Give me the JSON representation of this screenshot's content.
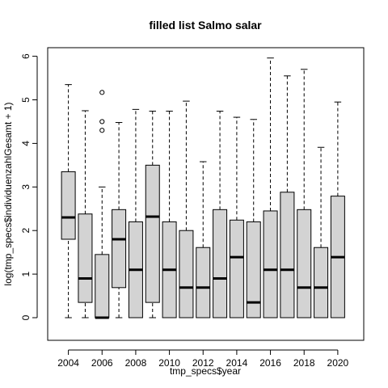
{
  "chart_data": {
    "type": "boxplot",
    "title": "filled list Salmo salar",
    "xlabel": "tmp_specs$year",
    "ylabel": "log(tmp_specs$individuenzahlGesamt + 1)",
    "ylim": [
      0,
      6.1
    ],
    "yticks": [
      0,
      1,
      2,
      3,
      4,
      5,
      6
    ],
    "xtick_labels": [
      "2004",
      "2006",
      "2008",
      "2010",
      "2012",
      "2014",
      "2016",
      "2018",
      "2020"
    ],
    "box_fill": "#d3d3d3",
    "grid": false,
    "boxes": [
      {
        "year": "2004",
        "whisker_low": 0,
        "q1": 1.8,
        "median": 2.3,
        "q3": 3.35,
        "whisker_high": 5.35,
        "outliers": []
      },
      {
        "year": "2005",
        "whisker_low": 0,
        "q1": 0.35,
        "median": 0.9,
        "q3": 2.38,
        "whisker_high": 4.75,
        "outliers": []
      },
      {
        "year": "2006",
        "whisker_low": 0,
        "q1": 0,
        "median": 0,
        "q3": 1.45,
        "whisker_high": 3.0,
        "outliers": [
          4.3,
          4.5,
          5.17
        ]
      },
      {
        "year": "2007",
        "whisker_low": 0,
        "q1": 0.69,
        "median": 1.8,
        "q3": 2.48,
        "whisker_high": 4.48,
        "outliers": []
      },
      {
        "year": "2008",
        "whisker_low": 0,
        "q1": 0,
        "median": 1.1,
        "q3": 2.2,
        "whisker_high": 4.78,
        "outliers": []
      },
      {
        "year": "2009",
        "whisker_low": 0,
        "q1": 0.35,
        "median": 2.32,
        "q3": 3.5,
        "whisker_high": 4.74,
        "outliers": []
      },
      {
        "year": "2010",
        "whisker_low": 0,
        "q1": 0,
        "median": 1.1,
        "q3": 2.2,
        "whisker_high": 4.74,
        "outliers": []
      },
      {
        "year": "2011",
        "whisker_low": 0,
        "q1": 0,
        "median": 0.69,
        "q3": 2.0,
        "whisker_high": 4.97,
        "outliers": []
      },
      {
        "year": "2012",
        "whisker_low": 0,
        "q1": 0,
        "median": 0.69,
        "q3": 1.61,
        "whisker_high": 3.58,
        "outliers": []
      },
      {
        "year": "2013",
        "whisker_low": 0,
        "q1": 0,
        "median": 0.9,
        "q3": 2.48,
        "whisker_high": 4.74,
        "outliers": []
      },
      {
        "year": "2014",
        "whisker_low": 0,
        "q1": 0,
        "median": 1.39,
        "q3": 2.24,
        "whisker_high": 4.6,
        "outliers": []
      },
      {
        "year": "2015",
        "whisker_low": 0,
        "q1": 0,
        "median": 0.35,
        "q3": 2.2,
        "whisker_high": 4.55,
        "outliers": []
      },
      {
        "year": "2016",
        "whisker_low": 0,
        "q1": 0,
        "median": 1.1,
        "q3": 2.45,
        "whisker_high": 5.96,
        "outliers": []
      },
      {
        "year": "2017",
        "whisker_low": 0,
        "q1": 0,
        "median": 1.1,
        "q3": 2.88,
        "whisker_high": 5.55,
        "outliers": []
      },
      {
        "year": "2018",
        "whisker_low": 0,
        "q1": 0,
        "median": 0.69,
        "q3": 2.48,
        "whisker_high": 5.7,
        "outliers": []
      },
      {
        "year": "2019",
        "whisker_low": 0,
        "q1": 0,
        "median": 0.69,
        "q3": 1.61,
        "whisker_high": 3.91,
        "outliers": []
      },
      {
        "year": "2020",
        "whisker_low": 0,
        "q1": 0,
        "median": 1.39,
        "q3": 2.79,
        "whisker_high": 4.95,
        "outliers": []
      }
    ]
  }
}
